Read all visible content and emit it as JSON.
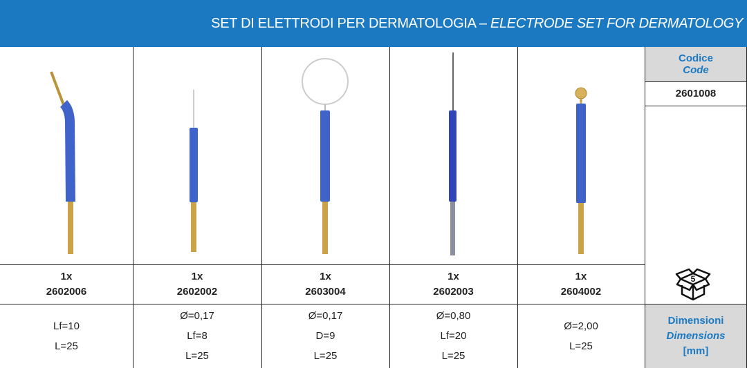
{
  "header": {
    "title_it": "SET DI ELETTRODI PER DERMATOLOGIA –",
    "title_en": "ELECTRODE SET FOR DERMATOLOGY"
  },
  "side": {
    "code_label_it": "Codice",
    "code_label_en": "Code",
    "code": "2601008",
    "pack_quantity": "5",
    "dimensions_label_it": "Dimensioni",
    "dimensions_label_en": "Dimensions",
    "dimensions_unit": "[mm]"
  },
  "products": [
    {
      "quantity": "1x",
      "code": "2602006",
      "dimensions": [
        "Lf=10",
        "L=25"
      ]
    },
    {
      "quantity": "1x",
      "code": "2602002",
      "dimensions": [
        "Ø=0,17",
        "Lf=8",
        "L=25"
      ]
    },
    {
      "quantity": "1x",
      "code": "2603004",
      "dimensions": [
        "Ø=0,17",
        "D=9",
        "L=25"
      ]
    },
    {
      "quantity": "1x",
      "code": "2602003",
      "dimensions": [
        "Ø=0,80",
        "Lf=20",
        "L=25"
      ]
    },
    {
      "quantity": "1x",
      "code": "2604002",
      "dimensions": [
        "Ø=2,00",
        "L=25"
      ]
    }
  ]
}
